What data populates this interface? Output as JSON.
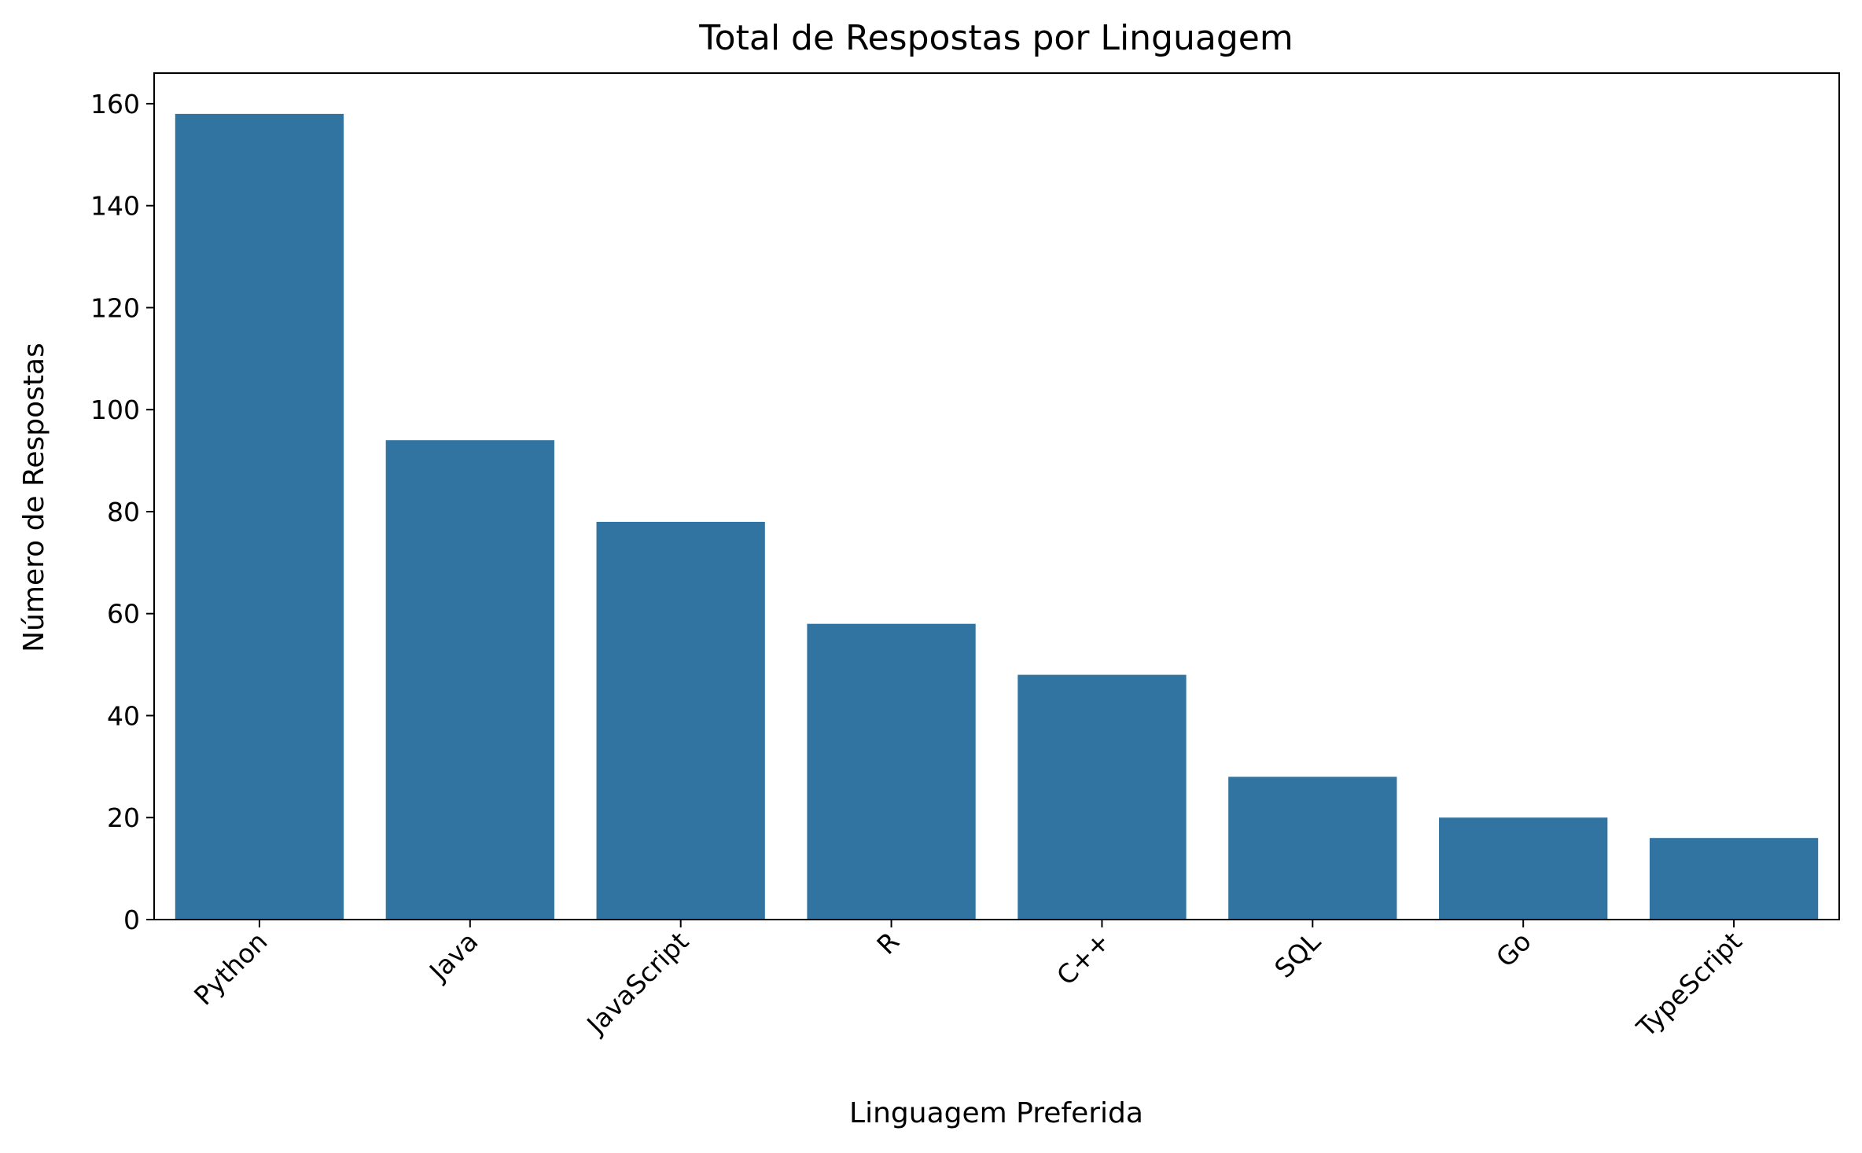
{
  "chart_data": {
    "type": "bar",
    "title": "Total de Respostas por Linguagem",
    "xlabel": "Linguagem Preferida",
    "ylabel": "Número de Respostas",
    "categories": [
      "Python",
      "Java",
      "JavaScript",
      "R",
      "C++",
      "SQL",
      "Go",
      "TypeScript"
    ],
    "values": [
      158,
      94,
      78,
      58,
      48,
      28,
      20,
      16
    ],
    "ylim": [
      0,
      166
    ],
    "yticks": [
      0,
      20,
      40,
      60,
      80,
      100,
      120,
      140,
      160
    ],
    "bar_color": "#3274a1",
    "grid": false,
    "legend": "none"
  }
}
